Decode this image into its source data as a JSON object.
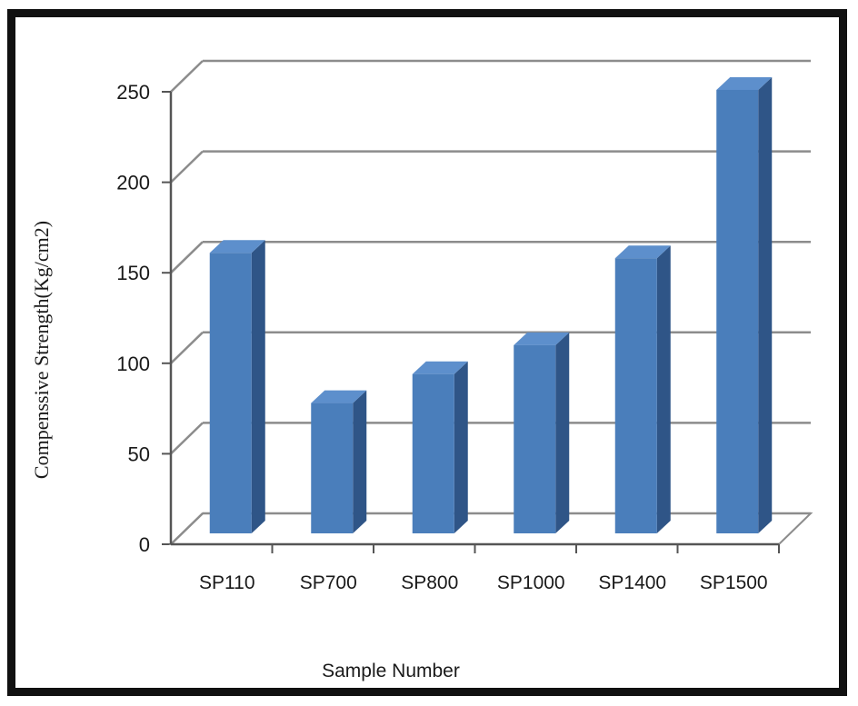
{
  "chart_data": {
    "type": "bar",
    "categories": [
      "SP110",
      "SP700",
      "SP800",
      "SP1000",
      "SP1400",
      "SP1500"
    ],
    "values": [
      155,
      72,
      88,
      104,
      152,
      245
    ],
    "title": "",
    "xlabel": "Sample Number",
    "ylabel": "Compenssive  Strength(Kg/cm2)",
    "ylim": [
      0,
      250
    ],
    "yticks": [
      "0",
      "50",
      "100",
      "150",
      "200",
      "250"
    ],
    "grid": true,
    "style": "3d-column",
    "colors": {
      "front": "#4a7ebb",
      "side": "#2f5587",
      "top": "#5d8fcc",
      "grid": "#8c8c8c",
      "frame": "#111111"
    }
  }
}
